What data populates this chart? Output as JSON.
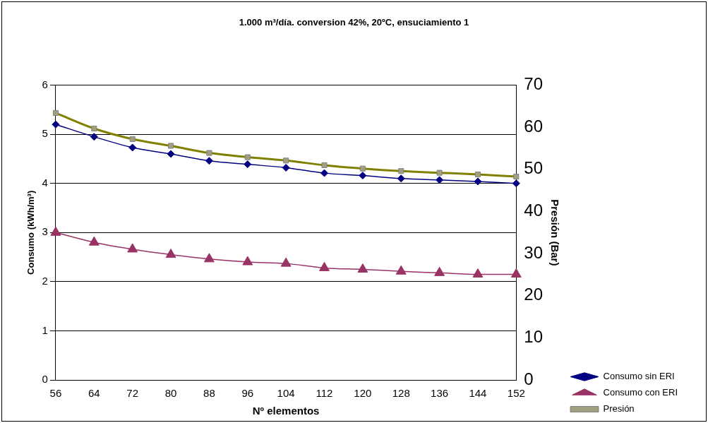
{
  "chart_data": {
    "type": "line",
    "title": "1.000 m³/día. conversion 42%, 20ºC, ensuciamiento 1",
    "xlabel": "Nº elementos",
    "ylabel": "Consumo (kWh/m³)",
    "y2label": "Presión (Bar)",
    "categories": [
      "56",
      "64",
      "72",
      "80",
      "88",
      "96",
      "104",
      "112",
      "120",
      "128",
      "136",
      "144",
      "152"
    ],
    "ylim": [
      0,
      6
    ],
    "yticks": [
      0,
      1,
      2,
      3,
      4,
      5,
      6
    ],
    "y2lim": [
      0,
      70
    ],
    "y2ticks": [
      0,
      10,
      20,
      30,
      40,
      50,
      60,
      70
    ],
    "grid": "y",
    "legend": "bottom right",
    "line_style": "solid",
    "series": [
      {
        "name": "Consumo sin ERI",
        "color": "#000080",
        "marker": "diamond",
        "values": [
          5.2,
          4.95,
          4.73,
          4.6,
          4.46,
          4.39,
          4.32,
          4.21,
          4.16,
          4.1,
          4.07,
          4.04,
          4.0
        ]
      },
      {
        "name": "Consumo con ERI",
        "color": "#993366",
        "marker": "triangle",
        "values": [
          3.0,
          2.8,
          2.66,
          2.55,
          2.46,
          2.4,
          2.37,
          2.28,
          2.25,
          2.21,
          2.18,
          2.15,
          2.15
        ]
      },
      {
        "name": "Presión",
        "color": "#808000",
        "marker": "square",
        "axis": "y2",
        "values": [
          63.4,
          59.7,
          57.2,
          55.6,
          53.9,
          52.9,
          52.1,
          51.0,
          50.2,
          49.6,
          49.2,
          48.8,
          48.3
        ]
      }
    ]
  }
}
